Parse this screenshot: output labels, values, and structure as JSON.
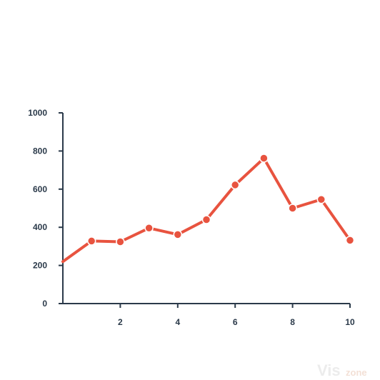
{
  "chart_data": {
    "type": "line",
    "x": [
      0,
      1,
      2,
      3,
      4,
      5,
      6,
      7,
      8,
      9,
      10
    ],
    "series": [
      {
        "values": [
          220,
          328,
          324,
          396,
          362,
          440,
          622,
          762,
          500,
          546,
          332
        ]
      }
    ],
    "xlim": [
      0,
      10
    ],
    "ylim": [
      0,
      1000
    ],
    "xticks": [
      2,
      4,
      6,
      8,
      10
    ],
    "yticks": [
      0,
      200,
      400,
      600,
      800,
      1000
    ],
    "xtick_labels": [
      "2",
      "4",
      "6",
      "8",
      "10"
    ],
    "ytick_labels": [
      "0",
      "200",
      "400",
      "600",
      "800",
      "1000"
    ],
    "grid": false,
    "title": "",
    "xlabel": "",
    "ylabel": "",
    "colors": {
      "line": "#e8533f",
      "axis": "#2b3a4a"
    }
  },
  "watermark": {
    "main": "Vis",
    "sub": "zone"
  }
}
